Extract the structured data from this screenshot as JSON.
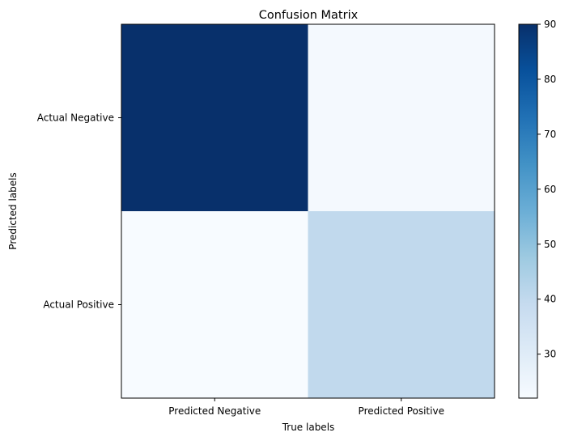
{
  "chart_data": {
    "type": "heatmap",
    "title": "Confusion Matrix",
    "xlabel": "True labels",
    "ylabel": "Predicted labels",
    "x_categories": [
      "Predicted Negative",
      "Predicted Positive"
    ],
    "y_categories": [
      "Actual Negative",
      "Actual Positive"
    ],
    "values": [
      [
        90,
        23
      ],
      [
        22,
        40
      ]
    ],
    "colormap": "Blues",
    "colorbar": {
      "min": 22,
      "max": 90,
      "ticks": [
        "30",
        "40",
        "50",
        "60",
        "70",
        "80",
        "90"
      ]
    },
    "grid": false
  }
}
